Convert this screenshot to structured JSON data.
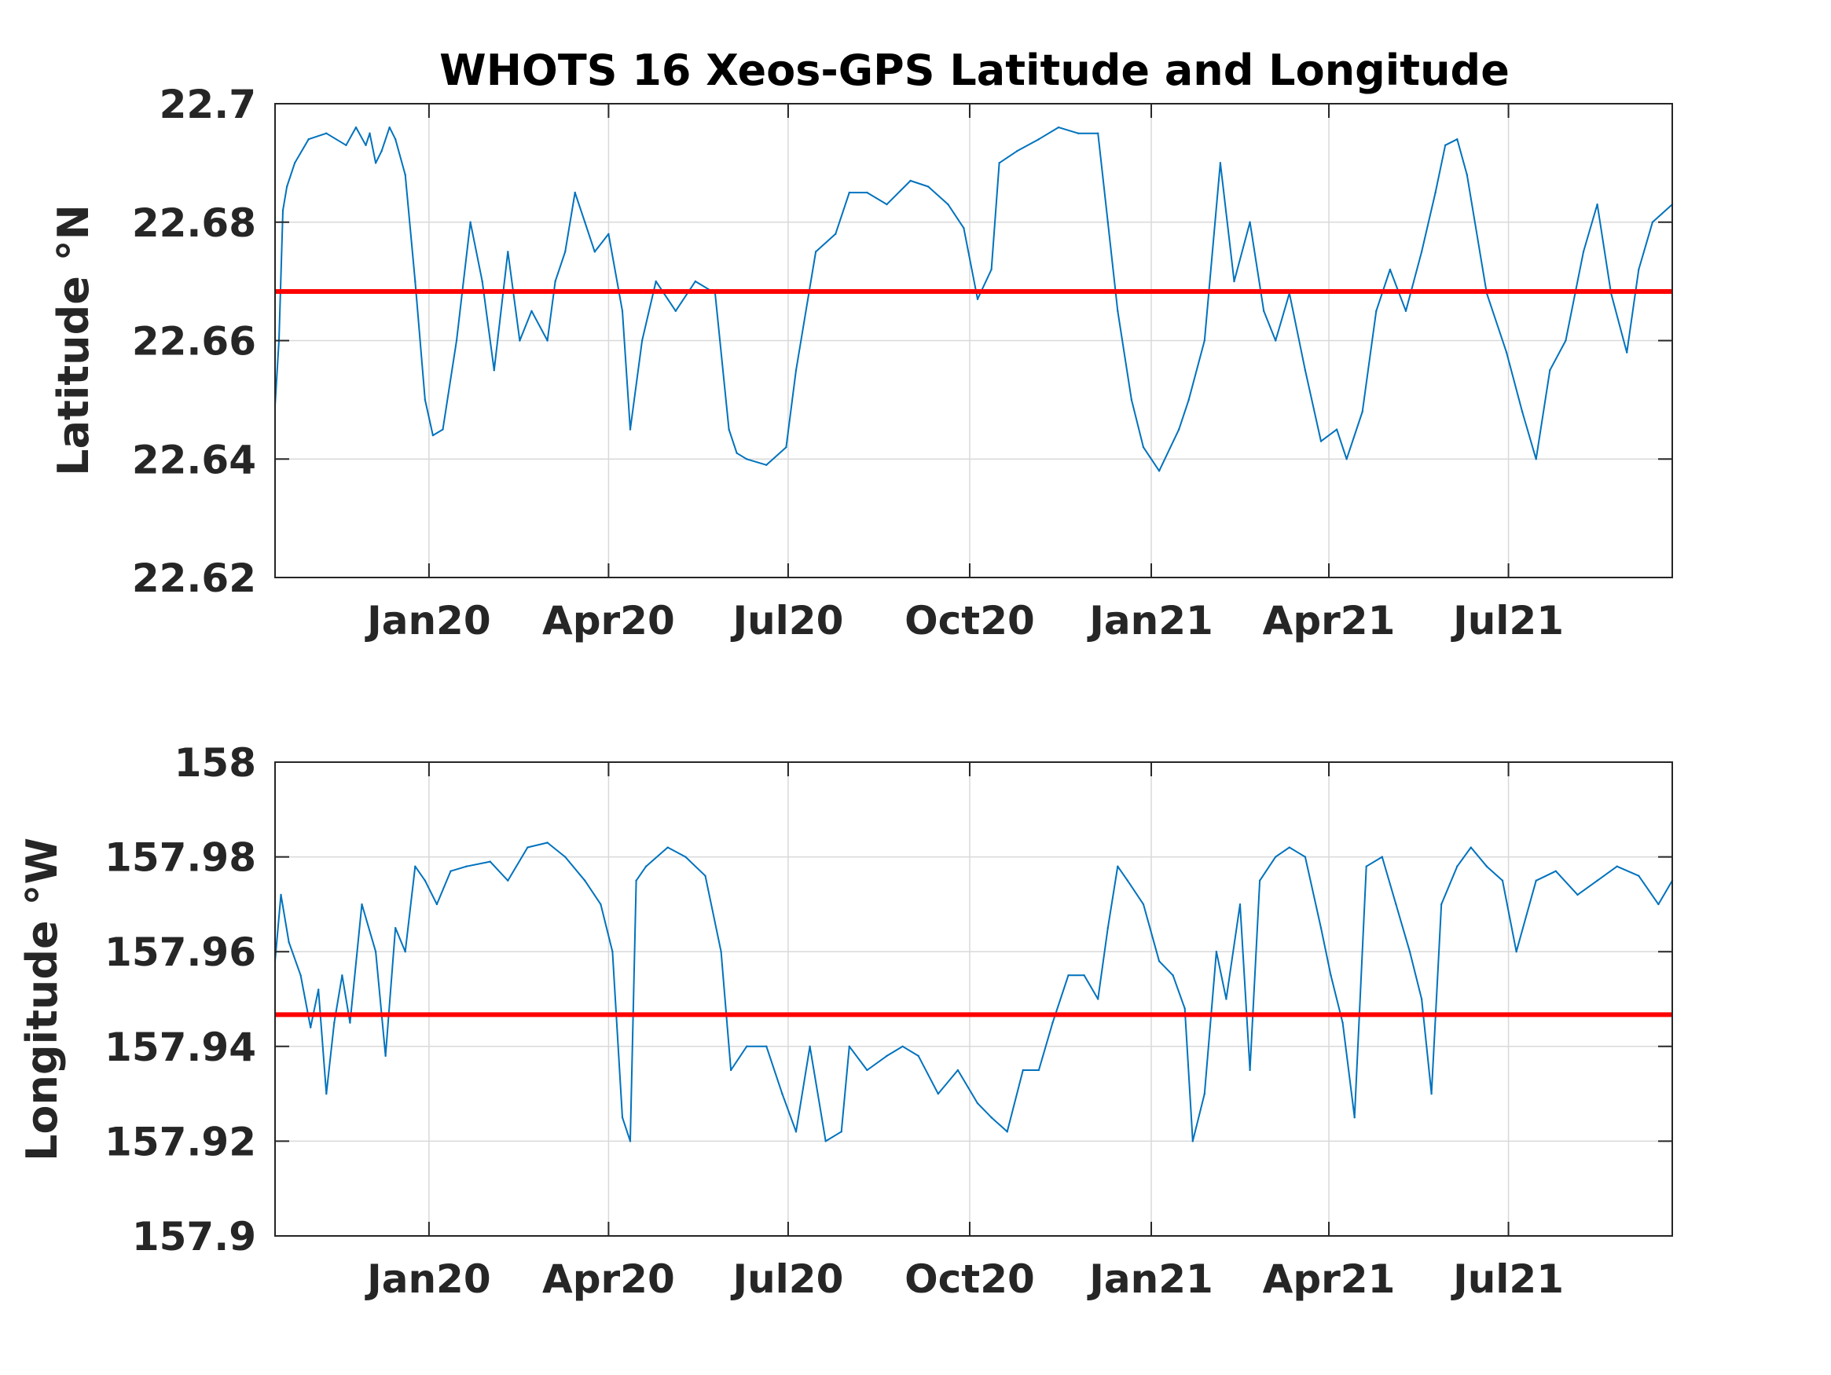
{
  "figure": {
    "title": "WHOTS 16 Xeos-GPS Latitude and Longitude"
  },
  "colors": {
    "series": "#0072BD",
    "reference": "#FF0000",
    "grid": "#D9D9D9",
    "axes": "#262626"
  },
  "chart_data": [
    {
      "type": "line",
      "title": "WHOTS 16 Xeos-GPS Latitude and Longitude",
      "ylabel": "Latitude °N",
      "xlabel": "",
      "xlim": [
        "2019-10-15",
        "2021-09-22"
      ],
      "ylim": [
        22.62,
        22.7
      ],
      "yticks": [
        22.62,
        22.64,
        22.66,
        22.68,
        22.7
      ],
      "ytick_labels": [
        "22.62",
        "22.64",
        "22.66",
        "22.68",
        "22.7"
      ],
      "xticks": [
        "2020-01-01",
        "2020-04-01",
        "2020-07-01",
        "2020-10-01",
        "2021-01-01",
        "2021-04-01",
        "2021-07-01"
      ],
      "xtick_labels": [
        "Jan20",
        "Apr20",
        "Jul20",
        "Oct20",
        "Jan21",
        "Apr21",
        "Jul21"
      ],
      "grid": true,
      "reference_line": 22.6683,
      "series": [
        {
          "x": [
            "2019-10-15",
            "2019-10-17",
            "2019-10-19",
            "2019-10-21",
            "2019-10-25",
            "2019-11-01",
            "2019-11-10",
            "2019-11-20",
            "2019-11-25",
            "2019-11-30",
            "2019-12-02",
            "2019-12-05",
            "2019-12-08",
            "2019-12-12",
            "2019-12-15",
            "2019-12-20",
            "2019-12-25",
            "2019-12-30",
            "2020-01-03",
            "2020-01-08",
            "2020-01-15",
            "2020-01-22",
            "2020-01-28",
            "2020-02-03",
            "2020-02-10",
            "2020-02-16",
            "2020-02-22",
            "2020-03-01",
            "2020-03-05",
            "2020-03-10",
            "2020-03-15",
            "2020-03-20",
            "2020-03-25",
            "2020-04-01",
            "2020-04-08",
            "2020-04-12",
            "2020-04-18",
            "2020-04-25",
            "2020-05-05",
            "2020-05-15",
            "2020-05-25",
            "2020-06-01",
            "2020-06-05",
            "2020-06-10",
            "2020-06-20",
            "2020-06-30",
            "2020-07-05",
            "2020-07-15",
            "2020-07-25",
            "2020-08-01",
            "2020-08-10",
            "2020-08-20",
            "2020-09-01",
            "2020-09-10",
            "2020-09-20",
            "2020-09-28",
            "2020-10-05",
            "2020-10-12",
            "2020-10-16",
            "2020-10-25",
            "2020-11-05",
            "2020-11-15",
            "2020-11-25",
            "2020-12-05",
            "2020-12-10",
            "2020-12-15",
            "2020-12-22",
            "2020-12-28",
            "2021-01-05",
            "2021-01-15",
            "2021-01-20",
            "2021-01-28",
            "2021-02-05",
            "2021-02-12",
            "2021-02-20",
            "2021-02-27",
            "2021-03-05",
            "2021-03-12",
            "2021-03-20",
            "2021-03-28",
            "2021-04-05",
            "2021-04-10",
            "2021-04-18",
            "2021-04-25",
            "2021-05-02",
            "2021-05-10",
            "2021-05-18",
            "2021-05-25",
            "2021-05-30",
            "2021-06-05",
            "2021-06-10",
            "2021-06-20",
            "2021-06-30",
            "2021-07-08",
            "2021-07-15",
            "2021-07-22",
            "2021-07-30",
            "2021-08-08",
            "2021-08-15",
            "2021-08-22",
            "2021-08-30",
            "2021-09-05",
            "2021-09-12",
            "2021-09-22"
          ],
          "y": [
            22.649,
            22.66,
            22.682,
            22.686,
            22.69,
            22.694,
            22.695,
            22.693,
            22.696,
            22.693,
            22.695,
            22.69,
            22.692,
            22.696,
            22.694,
            22.688,
            22.67,
            22.65,
            22.644,
            22.645,
            22.66,
            22.68,
            22.67,
            22.655,
            22.675,
            22.66,
            22.665,
            22.66,
            22.67,
            22.675,
            22.685,
            22.68,
            22.675,
            22.678,
            22.665,
            22.645,
            22.66,
            22.67,
            22.665,
            22.67,
            22.668,
            22.645,
            22.641,
            22.64,
            22.639,
            22.642,
            22.655,
            22.675,
            22.678,
            22.685,
            22.685,
            22.683,
            22.687,
            22.686,
            22.683,
            22.679,
            22.667,
            22.672,
            22.69,
            22.692,
            22.694,
            22.696,
            22.695,
            22.695,
            22.68,
            22.665,
            22.65,
            22.642,
            22.638,
            22.645,
            22.65,
            22.66,
            22.69,
            22.67,
            22.68,
            22.665,
            22.66,
            22.668,
            22.655,
            22.643,
            22.645,
            22.64,
            22.648,
            22.665,
            22.672,
            22.665,
            22.675,
            22.685,
            22.693,
            22.694,
            22.688,
            22.668,
            22.658,
            22.648,
            22.64,
            22.655,
            22.66,
            22.675,
            22.683,
            22.668,
            22.658,
            22.672,
            22.68,
            22.683
          ]
        }
      ]
    },
    {
      "type": "line",
      "title": "",
      "ylabel": "Longitude °W",
      "xlabel": "",
      "xlim": [
        "2019-10-15",
        "2021-09-22"
      ],
      "ylim": [
        157.9,
        158.0
      ],
      "yticks": [
        157.9,
        157.92,
        157.94,
        157.96,
        157.98,
        158.0
      ],
      "ytick_labels": [
        "157.9",
        "157.92",
        "157.94",
        "157.96",
        "157.98",
        "158"
      ],
      "xticks": [
        "2020-01-01",
        "2020-04-01",
        "2020-07-01",
        "2020-10-01",
        "2021-01-01",
        "2021-04-01",
        "2021-07-01"
      ],
      "xtick_labels": [
        "Jan20",
        "Apr20",
        "Jul20",
        "Oct20",
        "Jan21",
        "Apr21",
        "Jul21"
      ],
      "grid": true,
      "reference_line": 157.9467,
      "series": [
        {
          "x": [
            "2019-10-15",
            "2019-10-18",
            "2019-10-22",
            "2019-10-28",
            "2019-11-02",
            "2019-11-06",
            "2019-11-10",
            "2019-11-14",
            "2019-11-18",
            "2019-11-22",
            "2019-11-28",
            "2019-12-05",
            "2019-12-10",
            "2019-12-15",
            "2019-12-20",
            "2019-12-25",
            "2019-12-30",
            "2020-01-05",
            "2020-01-12",
            "2020-01-20",
            "2020-02-01",
            "2020-02-10",
            "2020-02-20",
            "2020-03-01",
            "2020-03-10",
            "2020-03-20",
            "2020-03-28",
            "2020-04-03",
            "2020-04-08",
            "2020-04-12",
            "2020-04-15",
            "2020-04-20",
            "2020-05-01",
            "2020-05-10",
            "2020-05-20",
            "2020-05-28",
            "2020-06-02",
            "2020-06-10",
            "2020-06-20",
            "2020-06-28",
            "2020-07-05",
            "2020-07-12",
            "2020-07-20",
            "2020-07-28",
            "2020-08-01",
            "2020-08-10",
            "2020-08-20",
            "2020-08-28",
            "2020-09-05",
            "2020-09-15",
            "2020-09-25",
            "2020-10-05",
            "2020-10-12",
            "2020-10-20",
            "2020-10-28",
            "2020-11-05",
            "2020-11-12",
            "2020-11-20",
            "2020-11-28",
            "2020-12-05",
            "2020-12-10",
            "2020-12-15",
            "2020-12-20",
            "2020-12-28",
            "2021-01-05",
            "2021-01-12",
            "2021-01-18",
            "2021-01-22",
            "2021-01-28",
            "2021-02-03",
            "2021-02-08",
            "2021-02-15",
            "2021-02-20",
            "2021-02-25",
            "2021-03-05",
            "2021-03-12",
            "2021-03-20",
            "2021-03-28",
            "2021-04-02",
            "2021-04-08",
            "2021-04-14",
            "2021-04-20",
            "2021-04-28",
            "2021-05-05",
            "2021-05-12",
            "2021-05-18",
            "2021-05-23",
            "2021-05-28",
            "2021-06-05",
            "2021-06-12",
            "2021-06-20",
            "2021-06-28",
            "2021-07-05",
            "2021-07-15",
            "2021-07-25",
            "2021-08-05",
            "2021-08-15",
            "2021-08-25",
            "2021-09-05",
            "2021-09-15",
            "2021-09-22"
          ],
          "y": [
            157.958,
            157.972,
            157.962,
            157.955,
            157.944,
            157.952,
            157.93,
            157.945,
            157.955,
            157.945,
            157.97,
            157.96,
            157.938,
            157.965,
            157.96,
            157.978,
            157.975,
            157.97,
            157.977,
            157.978,
            157.979,
            157.975,
            157.982,
            157.983,
            157.98,
            157.975,
            157.97,
            157.96,
            157.925,
            157.92,
            157.975,
            157.978,
            157.982,
            157.98,
            157.976,
            157.96,
            157.935,
            157.94,
            157.94,
            157.93,
            157.922,
            157.94,
            157.92,
            157.922,
            157.94,
            157.935,
            157.938,
            157.94,
            157.938,
            157.93,
            157.935,
            157.928,
            157.925,
            157.922,
            157.935,
            157.935,
            157.945,
            157.955,
            157.955,
            157.95,
            157.965,
            157.978,
            157.975,
            157.97,
            157.958,
            157.955,
            157.948,
            157.92,
            157.93,
            157.96,
            157.95,
            157.97,
            157.935,
            157.975,
            157.98,
            157.982,
            157.98,
            157.965,
            157.955,
            157.945,
            157.925,
            157.978,
            157.98,
            157.97,
            157.96,
            157.95,
            157.93,
            157.97,
            157.978,
            157.982,
            157.978,
            157.975,
            157.96,
            157.975,
            157.977,
            157.972,
            157.975,
            157.978,
            157.976,
            157.97,
            157.975
          ]
        }
      ]
    }
  ]
}
